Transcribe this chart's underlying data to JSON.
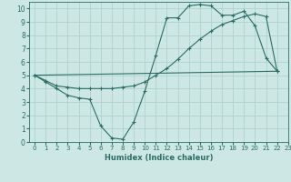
{
  "bg_color": "#cde8e4",
  "grid_color": "#aacfca",
  "line_color": "#2a6e65",
  "xlabel": "Humidex (Indice chaleur)",
  "xlim": [
    -0.5,
    23
  ],
  "ylim": [
    0,
    10.5
  ],
  "xticks": [
    0,
    1,
    2,
    3,
    4,
    5,
    6,
    7,
    8,
    9,
    10,
    11,
    12,
    13,
    14,
    15,
    16,
    17,
    18,
    19,
    20,
    21,
    22,
    23
  ],
  "yticks": [
    0,
    1,
    2,
    3,
    4,
    5,
    6,
    7,
    8,
    9,
    10
  ],
  "curve1_x": [
    0,
    1,
    2,
    3,
    4,
    5,
    6,
    7,
    8,
    9,
    10,
    11,
    12,
    13,
    14,
    15,
    16,
    17,
    18,
    19,
    20,
    21,
    22
  ],
  "curve1_y": [
    5.0,
    4.5,
    4.0,
    3.5,
    3.3,
    3.2,
    1.2,
    0.3,
    0.2,
    1.5,
    3.8,
    6.5,
    9.3,
    9.3,
    10.2,
    10.3,
    10.2,
    9.5,
    9.5,
    9.8,
    8.7,
    6.3,
    5.3
  ],
  "curve2_x": [
    0,
    22
  ],
  "curve2_y": [
    5.0,
    5.3
  ],
  "curve3_x": [
    0,
    1,
    2,
    3,
    4,
    5,
    6,
    7,
    8,
    9,
    10,
    11,
    12,
    13,
    14,
    15,
    16,
    17,
    18,
    19,
    20,
    21,
    22
  ],
  "curve3_y": [
    5.0,
    4.6,
    4.2,
    4.1,
    4.0,
    4.0,
    4.0,
    4.0,
    4.1,
    4.2,
    4.5,
    5.0,
    5.5,
    6.2,
    7.0,
    7.7,
    8.3,
    8.8,
    9.1,
    9.4,
    9.6,
    9.4,
    5.3
  ]
}
